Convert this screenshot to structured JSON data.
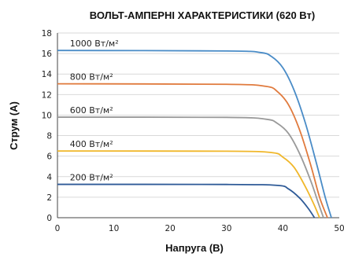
{
  "chart_data": {
    "type": "line",
    "title": "ВОЛЬТ-АМПЕРНІ ХАРАКТЕРИСТИКИ (620 Вт)",
    "xlabel": "Напруга (В)",
    "ylabel": "Струм (А)",
    "xlim": [
      0,
      50
    ],
    "ylim": [
      0,
      18
    ],
    "xticks": [
      "0",
      "10",
      "20",
      "30",
      "40",
      "50"
    ],
    "yticks": [
      "0",
      "2",
      "4",
      "6",
      "8",
      "10",
      "12",
      "14",
      "16",
      "18"
    ],
    "grid": true,
    "legend": "inline",
    "series": [
      {
        "name": "1000 Вт/м²",
        "color": "#4a8cc7",
        "x": [
          0,
          30,
          36,
          38,
          40,
          42,
          44,
          46,
          47.5,
          48.6
        ],
        "y": [
          16.3,
          16.25,
          16.1,
          15.7,
          14.6,
          12.4,
          9.2,
          5.2,
          2.0,
          0
        ]
      },
      {
        "name": "800 Вт/м²",
        "color": "#e07a3d",
        "x": [
          0,
          30,
          37,
          39,
          41,
          43,
          45,
          46.5,
          47.9
        ],
        "y": [
          13.05,
          13.0,
          12.8,
          12.3,
          11.0,
          8.5,
          5.0,
          2.0,
          0
        ]
      },
      {
        "name": "600 Вт/м²",
        "color": "#9a9a9a",
        "x": [
          0,
          30,
          37,
          39,
          41,
          43,
          45,
          46.3,
          47.2
        ],
        "y": [
          9.8,
          9.78,
          9.6,
          9.2,
          8.2,
          6.2,
          3.5,
          1.4,
          0
        ]
      },
      {
        "name": "400 Вт/м²",
        "color": "#f0b72a",
        "x": [
          0,
          30,
          38,
          40,
          42,
          44,
          45.5,
          46.5
        ],
        "y": [
          6.5,
          6.48,
          6.35,
          5.9,
          4.9,
          3.0,
          1.3,
          0
        ]
      },
      {
        "name": "200 Вт/м²",
        "color": "#2e5a97",
        "x": [
          0,
          30,
          39,
          41,
          43,
          44.5,
          45.6
        ],
        "y": [
          3.25,
          3.24,
          3.15,
          2.8,
          1.9,
          0.9,
          0
        ]
      }
    ]
  }
}
